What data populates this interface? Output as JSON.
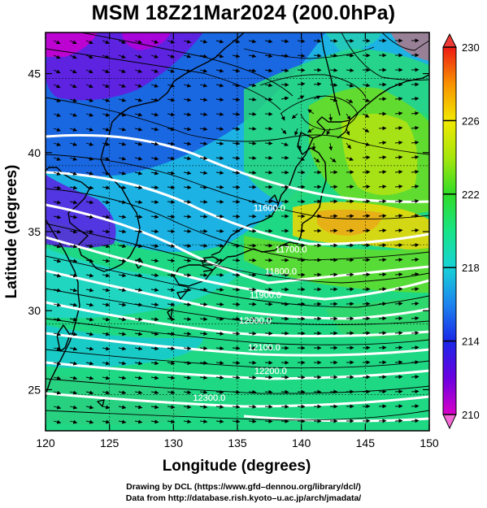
{
  "title": "MSM 18Z21Mar2024 (200.0hPa)",
  "xaxis": {
    "label": "Longitude (degrees)",
    "min": 120,
    "max": 150,
    "ticks": [
      120,
      125,
      130,
      135,
      140,
      145,
      150
    ]
  },
  "yaxis": {
    "label": "Latitude  (degrees)",
    "min": 22.4,
    "max": 47.6,
    "ticks": [
      25,
      30,
      35,
      40,
      45
    ]
  },
  "colorbar": {
    "min": 210,
    "max": 230,
    "ticks": [
      210,
      214,
      218,
      222,
      226,
      230
    ]
  },
  "contours": [
    {
      "label": "11600.0",
      "lon": 137.5,
      "lat": 36.3
    },
    {
      "label": "11700.0",
      "lon": 139.2,
      "lat": 33.7
    },
    {
      "label": "11800.0",
      "lon": 138.4,
      "lat": 32.3
    },
    {
      "label": "11900.0",
      "lon": 137.2,
      "lat": 30.8
    },
    {
      "label": "12000.0",
      "lon": 136.4,
      "lat": 29.2
    },
    {
      "label": "12100.0",
      "lon": 137.1,
      "lat": 27.5
    },
    {
      "label": "12200.0",
      "lon": 137.6,
      "lat": 26.0
    },
    {
      "label": "12300.0",
      "lon": 132.8,
      "lat": 24.3
    }
  ],
  "credits": {
    "line1": "Drawing by DCL (https://www.gfd–dennou.org/library/dcl/)",
    "line2": "Data from http://database.rish.kyoto–u.ac.jp/arch/jmadata/"
  }
}
